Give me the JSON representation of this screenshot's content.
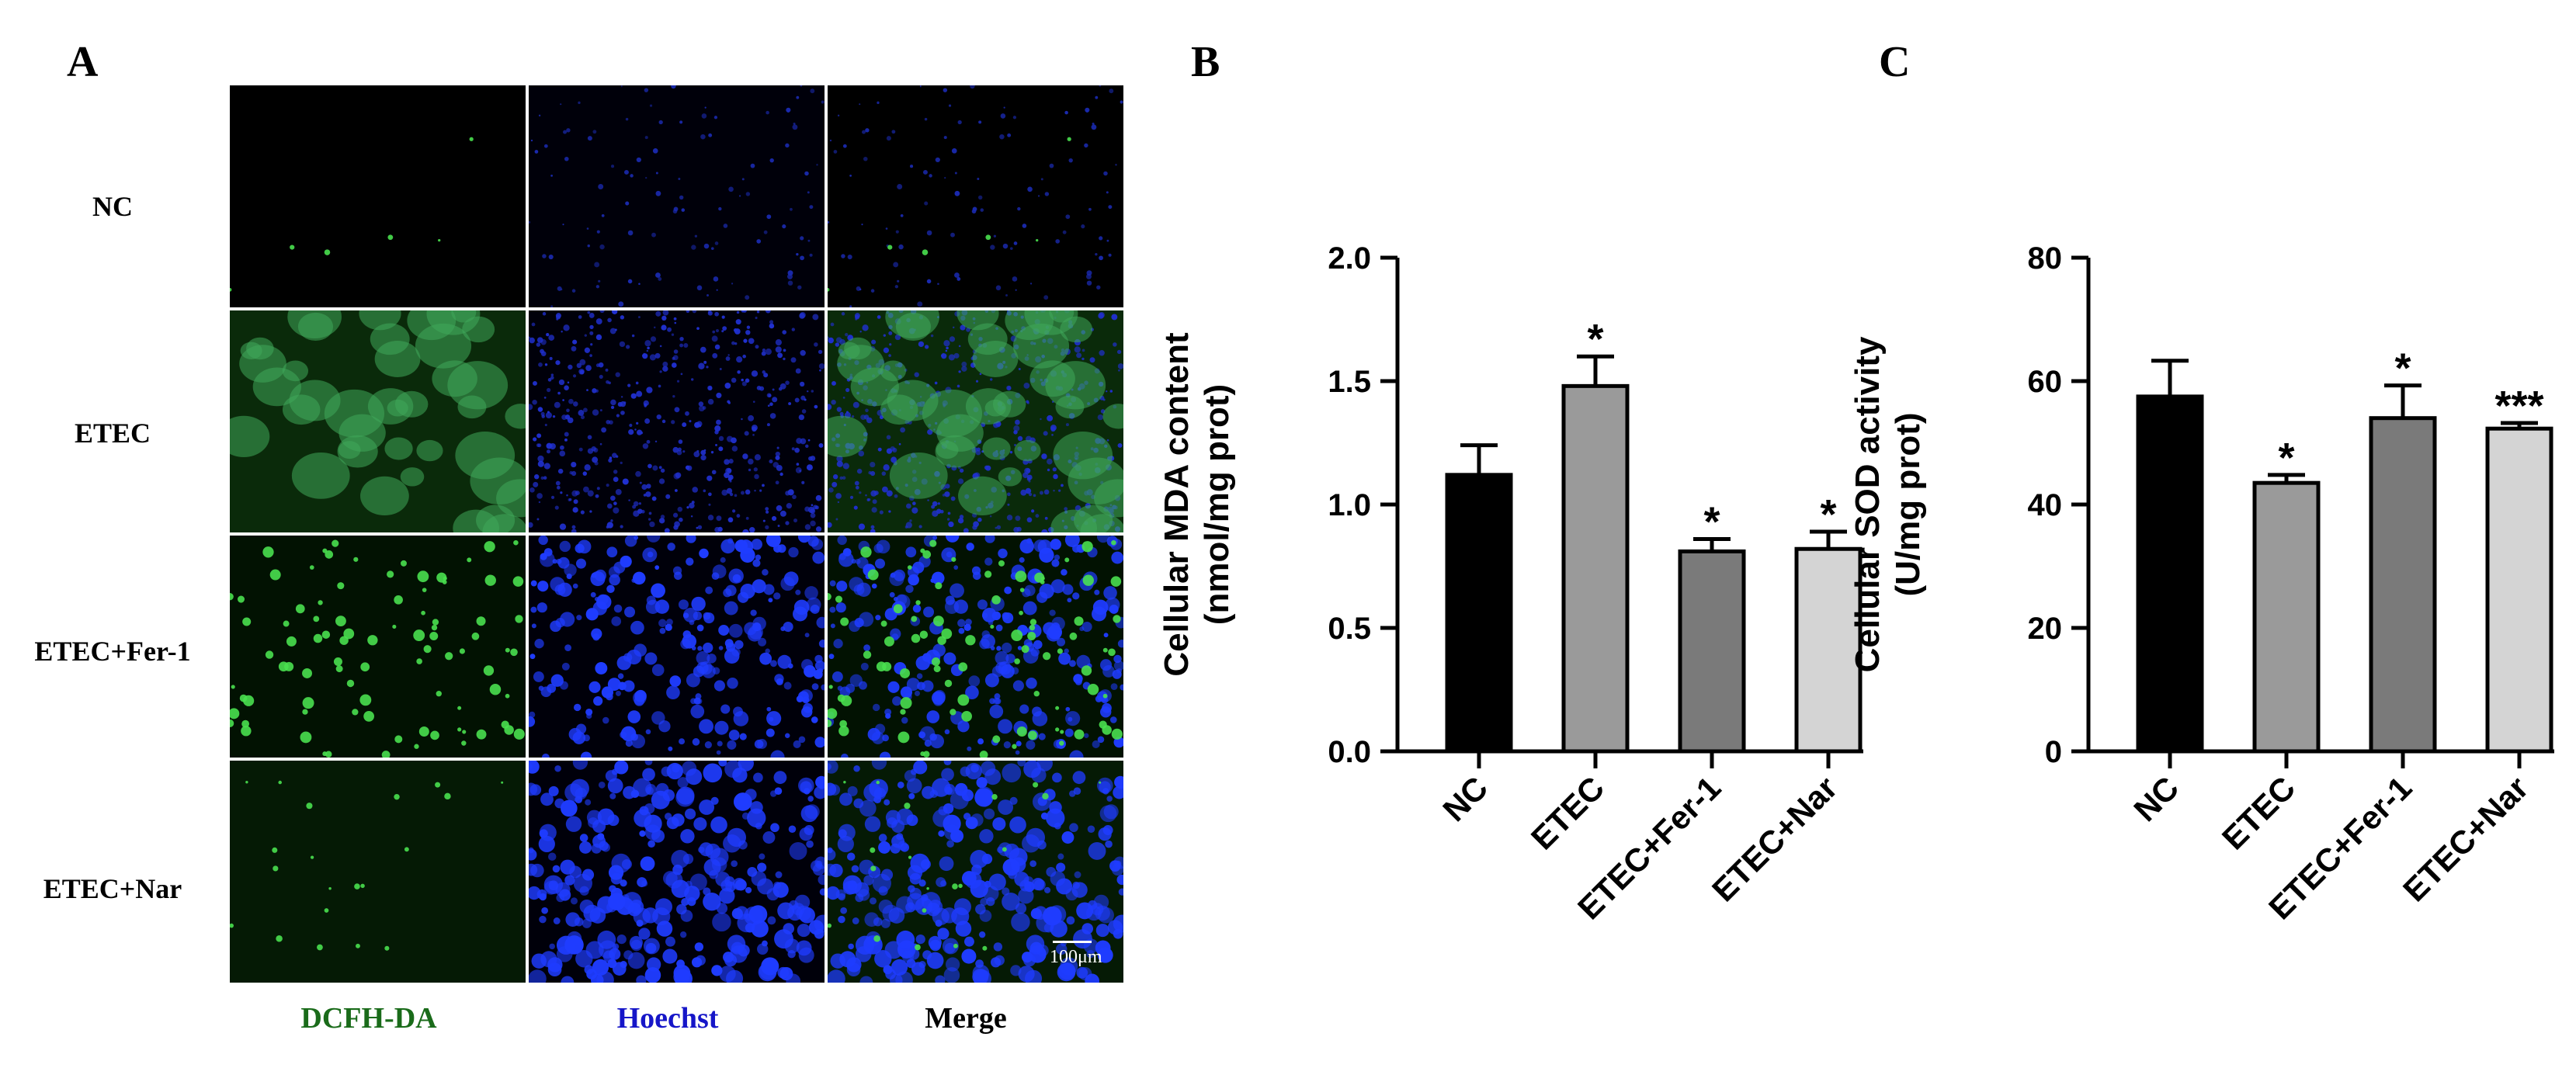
{
  "panels": {
    "a": "A",
    "b": "B",
    "c": "C"
  },
  "micrographs": {
    "rows": [
      "NC",
      "ETEC",
      "ETEC+Fer-1",
      "ETEC+Nar"
    ],
    "columns": [
      {
        "label": "DCFH-DA",
        "color": "#1a6b1a"
      },
      {
        "label": "Hoechst",
        "color": "#1616c8"
      },
      {
        "label": "Merge",
        "color": "#000000"
      }
    ],
    "scale_bar_label": "100μm"
  },
  "chart_data": [
    {
      "type": "bar",
      "panel": "B",
      "categories": [
        "NC",
        "ETEC",
        "ETEC+Fer-1",
        "ETEC+Nar"
      ],
      "values": [
        1.12,
        1.48,
        0.81,
        0.82
      ],
      "errors": [
        0.12,
        0.12,
        0.05,
        0.07
      ],
      "significance": [
        "",
        "*",
        "*",
        "*"
      ],
      "colors": [
        "#000000",
        "#9a9a9a",
        "#7a7a7a",
        "#d4d4d4"
      ],
      "ylabel": "Cellular MDA content",
      "ylabel2": "(nmol/mg prot)",
      "ylim": [
        0,
        2.0
      ],
      "yticks": [
        "0.0",
        "0.5",
        "1.0",
        "1.5",
        "2.0"
      ]
    },
    {
      "type": "bar",
      "panel": "C",
      "categories": [
        "NC",
        "ETEC",
        "ETEC+Fer-1",
        "ETEC+Nar"
      ],
      "values": [
        57.5,
        43.5,
        54.0,
        52.3
      ],
      "errors": [
        5.8,
        1.3,
        5.3,
        0.9
      ],
      "significance": [
        "",
        "*",
        "*",
        "***"
      ],
      "colors": [
        "#000000",
        "#9a9a9a",
        "#7a7a7a",
        "#d4d4d4"
      ],
      "ylabel": "Cellular SOD activity",
      "ylabel2": "(U/mg prot)",
      "ylim": [
        0,
        80
      ],
      "yticks": [
        "0",
        "20",
        "40",
        "60",
        "80"
      ]
    }
  ]
}
